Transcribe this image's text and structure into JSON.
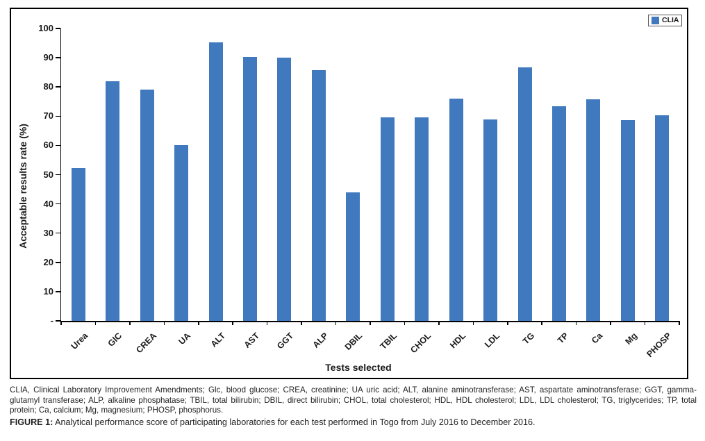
{
  "chart_data": {
    "type": "bar",
    "title": "",
    "categories": [
      "Urea",
      "GlC",
      "CREA",
      "UA",
      "ALT",
      "AST",
      "GGT",
      "ALP",
      "DBIL",
      "TBIL",
      "CHOL",
      "HDL",
      "LDL",
      "TG",
      "TP",
      "Ca",
      "Mg",
      "PHOSP"
    ],
    "series": [
      {
        "name": "CLIA",
        "values": [
          52.2,
          82,
          79.2,
          60,
          95.2,
          90.2,
          90,
          85.7,
          44,
          69.5,
          69.6,
          76,
          68.8,
          86.7,
          73.4,
          75.8,
          68.6,
          70.2
        ]
      }
    ],
    "xlabel": "Tests selected",
    "ylabel": "Acceptable results rate (%)",
    "ylim": [
      0,
      100
    ],
    "y_step": 10,
    "grid": false,
    "legend_position": "top-right",
    "bar_color": "#4079BE"
  },
  "figure": {
    "legend": {
      "label": "CLIA",
      "swatch_color": "#4079BE"
    },
    "y_axis": {
      "title": "Acceptable results rate (%)",
      "tick_labels": [
        "-",
        "10",
        "20",
        "30",
        "40",
        "50",
        "60",
        "70",
        "80",
        "90",
        "100"
      ]
    },
    "x_axis": {
      "title": "Tests selected"
    }
  },
  "footnote": {
    "text": "CLIA, Clinical Laboratory Improvement Amendments; Glc, blood glucose; CREA, creatinine; UA uric acid; ALT, alanine aminotransferase; AST, aspartate aminotransferase; GGT, gamma-glutamyl transferase; ALP, alkaline phosphatase; TBIL, total bilirubin; DBIL, direct bilirubin; CHOL, total cholesterol; HDL, HDL cholesterol; LDL, LDL cholesterol; TG, triglycerides; TP, total protein; Ca, calcium; Mg, magnesium; PHOSP, phosphorus."
  },
  "caption": {
    "label": "FIGURE 1:",
    "text": " Analytical performance score of participating laboratories for each test performed in Togo from July 2016 to December 2016."
  }
}
